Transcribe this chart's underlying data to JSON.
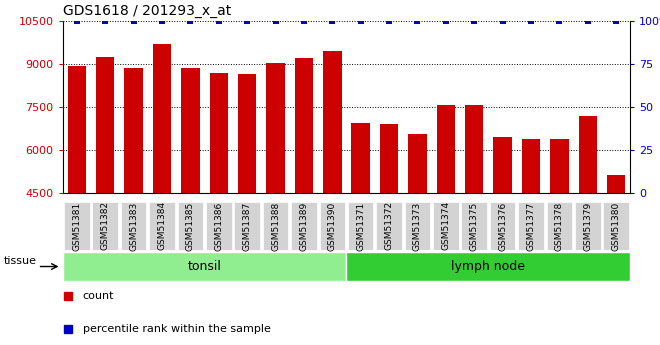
{
  "title": "GDS1618 / 201293_x_at",
  "samples": [
    "GSM51381",
    "GSM51382",
    "GSM51383",
    "GSM51384",
    "GSM51385",
    "GSM51386",
    "GSM51387",
    "GSM51388",
    "GSM51389",
    "GSM51390",
    "GSM51371",
    "GSM51372",
    "GSM51373",
    "GSM51374",
    "GSM51375",
    "GSM51376",
    "GSM51377",
    "GSM51378",
    "GSM51379",
    "GSM51380"
  ],
  "counts": [
    8940,
    9240,
    8870,
    9680,
    8870,
    8680,
    8630,
    9040,
    9190,
    9460,
    6950,
    6900,
    6560,
    7580,
    7560,
    6470,
    6390,
    6380,
    7180,
    5120
  ],
  "percentile": [
    100,
    100,
    100,
    100,
    100,
    100,
    100,
    100,
    100,
    100,
    100,
    100,
    100,
    100,
    100,
    100,
    100,
    100,
    100,
    100
  ],
  "bar_color": "#cc0000",
  "dot_color": "#0000cc",
  "ylim_left": [
    4500,
    10500
  ],
  "ylim_right": [
    0,
    100
  ],
  "yticks_left": [
    4500,
    6000,
    7500,
    9000,
    10500
  ],
  "yticks_right": [
    0,
    25,
    50,
    75,
    100
  ],
  "tissue_groups": [
    {
      "label": "tonsil",
      "start": 0,
      "end": 10,
      "color": "#90ee90"
    },
    {
      "label": "lymph node",
      "start": 10,
      "end": 20,
      "color": "#32cd32"
    }
  ],
  "tissue_label": "tissue",
  "legend_count_label": "count",
  "legend_pct_label": "percentile rank within the sample",
  "xticklabel_bg": "#d3d3d3"
}
